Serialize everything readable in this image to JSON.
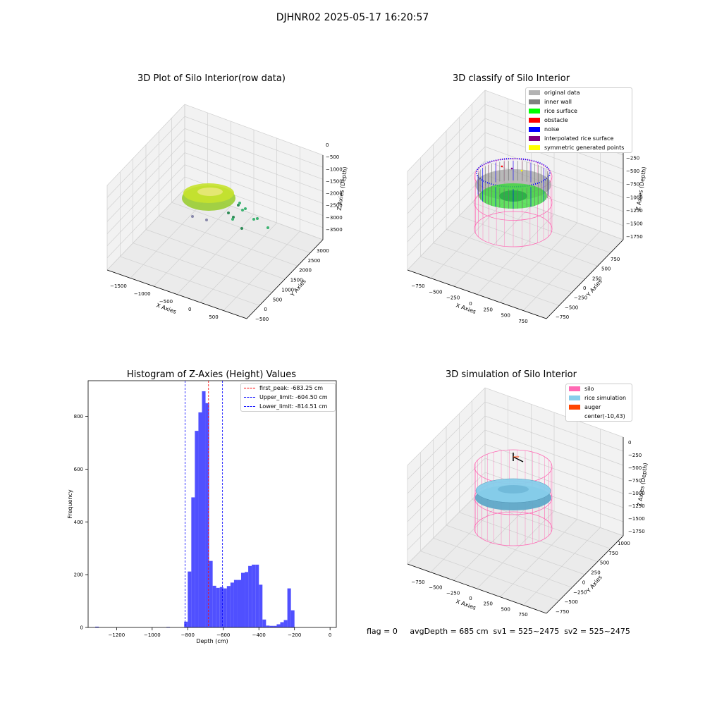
{
  "figure": {
    "suptitle": "DJHNR02 2025-05-17 16:20:57",
    "footer": "flag = 0     avgDepth = 685 cm  sv1 = 525~2475  sv2 = 525~2475"
  },
  "colors": {
    "hist_bar": "#5050ff",
    "peak_line": "#ff0000",
    "limit_line": "#0000ff",
    "silo_wire": "#ff69b4",
    "rice_sim": "#87ceeb",
    "auger": "#ff4500"
  },
  "chart_data": [
    {
      "type": "scatter",
      "title": "3D Plot of Silo Interior(row data)",
      "xlabel": "X Axies",
      "ylabel": "Y Axies",
      "zlabel": "Z Axies (Depth)",
      "x_ticks": [
        "−1500",
        "−1000",
        "−500",
        "0",
        "500"
      ],
      "y_ticks": [
        "−500",
        "0",
        "500",
        "1000",
        "1500",
        "2000",
        "2500",
        "3000"
      ],
      "z_ticks": [
        "0",
        "−500",
        "−1000",
        "−1500",
        "−2000",
        "−2500",
        "−3000",
        "−3500"
      ],
      "grid": true
    },
    {
      "type": "scatter",
      "title": "3D classify of Silo Interior",
      "xlabel": "X Axies",
      "ylabel": "Y Axies",
      "zlabel": "Z Axies (Depth)",
      "x_ticks": [
        "−750",
        "−500",
        "−250",
        "0",
        "250",
        "500",
        "750"
      ],
      "y_ticks": [
        "−750",
        "−500",
        "−250",
        "0",
        "250",
        "500",
        "750"
      ],
      "z_ticks": [
        "0",
        "−250",
        "−500",
        "−750",
        "−1000",
        "−1250",
        "−1500",
        "−1750"
      ],
      "legend": [
        {
          "label": "original data",
          "color": "#b3b3b3"
        },
        {
          "label": "inner wall",
          "color": "#808080"
        },
        {
          "label": "rice surface",
          "color": "#00ff00"
        },
        {
          "label": "obstacle",
          "color": "#ff0000"
        },
        {
          "label": "noise",
          "color": "#0000ff"
        },
        {
          "label": "interpolated rice surface",
          "color": "#800080"
        },
        {
          "label": "symmetric generated points",
          "color": "#ffff00"
        }
      ],
      "legend_position": "top-right",
      "grid": true
    },
    {
      "type": "bar",
      "title": "Histogram of Z-Axies (Height) Values",
      "xlabel": "Depth (cm)",
      "ylabel": "Frequency",
      "xlim": [
        -1360,
        35
      ],
      "ylim": [
        0,
        935
      ],
      "x_ticks": [
        -1200,
        -1000,
        -800,
        -600,
        -400,
        -200,
        0
      ],
      "x_tick_labels": [
        "−1200",
        "−1000",
        "−800",
        "−600",
        "−400",
        "−200",
        "0"
      ],
      "y_ticks": [
        0,
        200,
        400,
        600,
        800
      ],
      "bin_width": 20,
      "bins": [
        {
          "x": -1320,
          "v": 3
        },
        {
          "x": -920,
          "v": 2
        },
        {
          "x": -820,
          "v": 22
        },
        {
          "x": -800,
          "v": 212
        },
        {
          "x": -780,
          "v": 493
        },
        {
          "x": -760,
          "v": 745
        },
        {
          "x": -740,
          "v": 815
        },
        {
          "x": -720,
          "v": 895
        },
        {
          "x": -700,
          "v": 850
        },
        {
          "x": -680,
          "v": 252
        },
        {
          "x": -660,
          "v": 158
        },
        {
          "x": -640,
          "v": 150
        },
        {
          "x": -620,
          "v": 153
        },
        {
          "x": -600,
          "v": 148
        },
        {
          "x": -580,
          "v": 157
        },
        {
          "x": -560,
          "v": 170
        },
        {
          "x": -540,
          "v": 180
        },
        {
          "x": -520,
          "v": 180
        },
        {
          "x": -500,
          "v": 207
        },
        {
          "x": -480,
          "v": 210
        },
        {
          "x": -460,
          "v": 233
        },
        {
          "x": -440,
          "v": 238
        },
        {
          "x": -420,
          "v": 238
        },
        {
          "x": -400,
          "v": 162
        },
        {
          "x": -380,
          "v": 30
        },
        {
          "x": -360,
          "v": 7
        },
        {
          "x": -340,
          "v": 6
        },
        {
          "x": -320,
          "v": 6
        },
        {
          "x": -300,
          "v": 12
        },
        {
          "x": -280,
          "v": 20
        },
        {
          "x": -260,
          "v": 28
        },
        {
          "x": -240,
          "v": 148
        },
        {
          "x": -220,
          "v": 65
        }
      ],
      "lines": [
        {
          "label": "first_peak: -683.25 cm",
          "x": -683.25,
          "color": "#ff0000"
        },
        {
          "label": "Upper_limit: -604.50 cm",
          "x": -604.5,
          "color": "#0000ff"
        },
        {
          "label": "Lower_limit: -814.51 cm",
          "x": -814.51,
          "color": "#0000ff"
        }
      ],
      "legend_position": "top-right"
    },
    {
      "type": "scatter",
      "title": "3D simulation of Silo Interior",
      "xlabel": "X Axies",
      "ylabel": "Y Axies",
      "zlabel": "Z Axies (Depth)",
      "x_ticks": [
        "−750",
        "−500",
        "−250",
        "0",
        "250",
        "500",
        "750"
      ],
      "y_ticks": [
        "−750",
        "−500",
        "−250",
        "0",
        "250",
        "500",
        "750",
        "1000"
      ],
      "z_ticks": [
        "0",
        "−250",
        "−500",
        "−750",
        "−1000",
        "−1250",
        "−1500",
        "−1750"
      ],
      "legend": [
        {
          "label": "silo",
          "color": "#ff69b4"
        },
        {
          "label": "rice simulation",
          "color": "#87ceeb"
        },
        {
          "label": "auger",
          "color": "#ff4500"
        },
        {
          "label": "center(-10,43)",
          "color": ""
        }
      ],
      "legend_position": "top-right",
      "grid": true
    }
  ]
}
